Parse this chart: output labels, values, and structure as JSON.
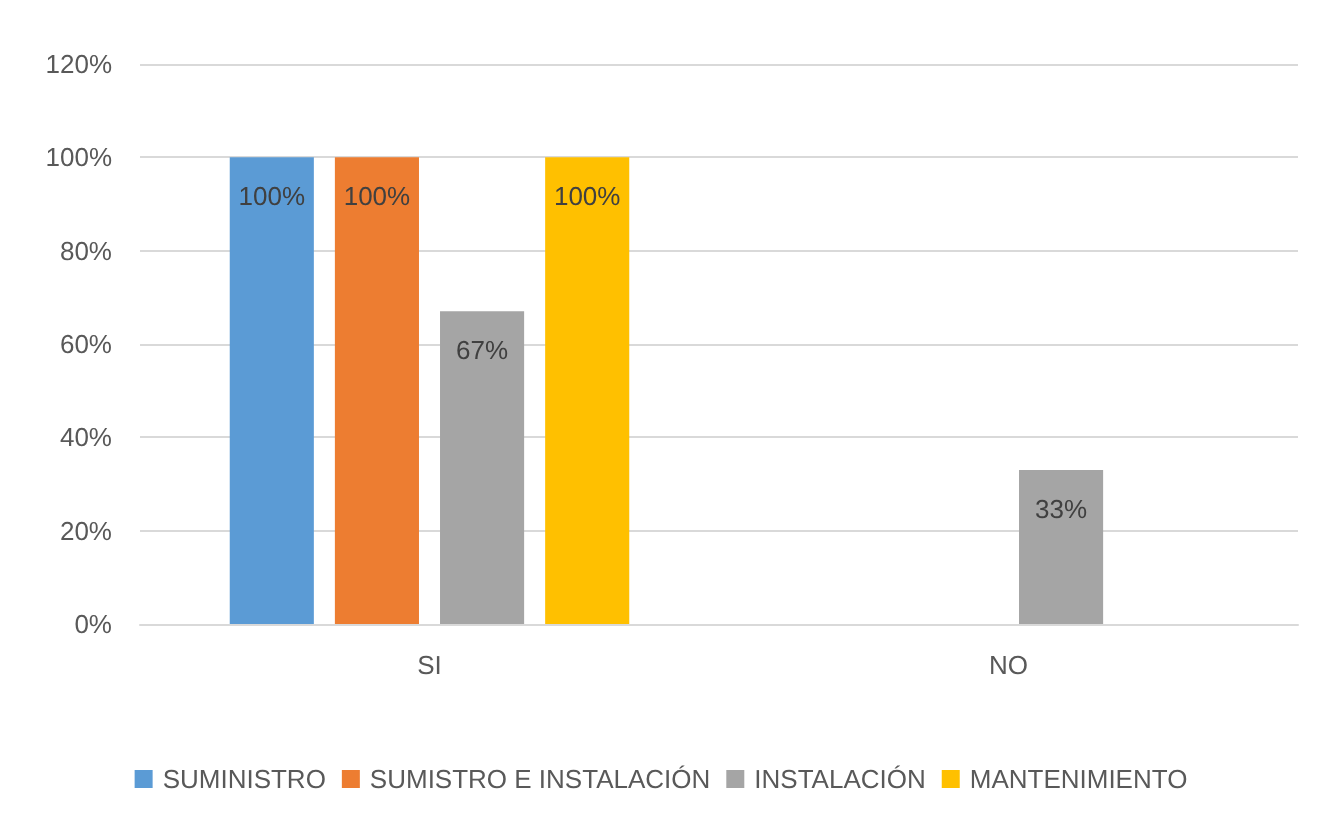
{
  "chart_data": {
    "type": "bar",
    "categories": [
      "SI",
      "NO"
    ],
    "series": [
      {
        "name": "SUMINISTRO",
        "color": "#5b9bd5",
        "values": [
          100,
          0
        ],
        "value_labels": [
          "100%",
          null
        ]
      },
      {
        "name": "SUMISTRO E INSTALACIÓN",
        "color": "#ed7d31",
        "values": [
          100,
          0
        ],
        "value_labels": [
          "100%",
          null
        ]
      },
      {
        "name": "INSTALACIÓN",
        "color": "#a5a5a5",
        "values": [
          67,
          33
        ],
        "value_labels": [
          "67%",
          "33%"
        ]
      },
      {
        "name": "MANTENIMIENTO",
        "color": "#ffc000",
        "values": [
          100,
          0
        ],
        "value_labels": [
          "100%",
          null
        ]
      }
    ],
    "ylim": [
      0,
      120
    ],
    "yticks": [
      {
        "value": 0,
        "label": "0%"
      },
      {
        "value": 20,
        "label": "20%"
      },
      {
        "value": 40,
        "label": "40%"
      },
      {
        "value": 60,
        "label": "60%"
      },
      {
        "value": 80,
        "label": "80%"
      },
      {
        "value": 100,
        "label": "100%"
      },
      {
        "value": 120,
        "label": "120%"
      }
    ],
    "grid": "y",
    "legend": "bottom"
  }
}
